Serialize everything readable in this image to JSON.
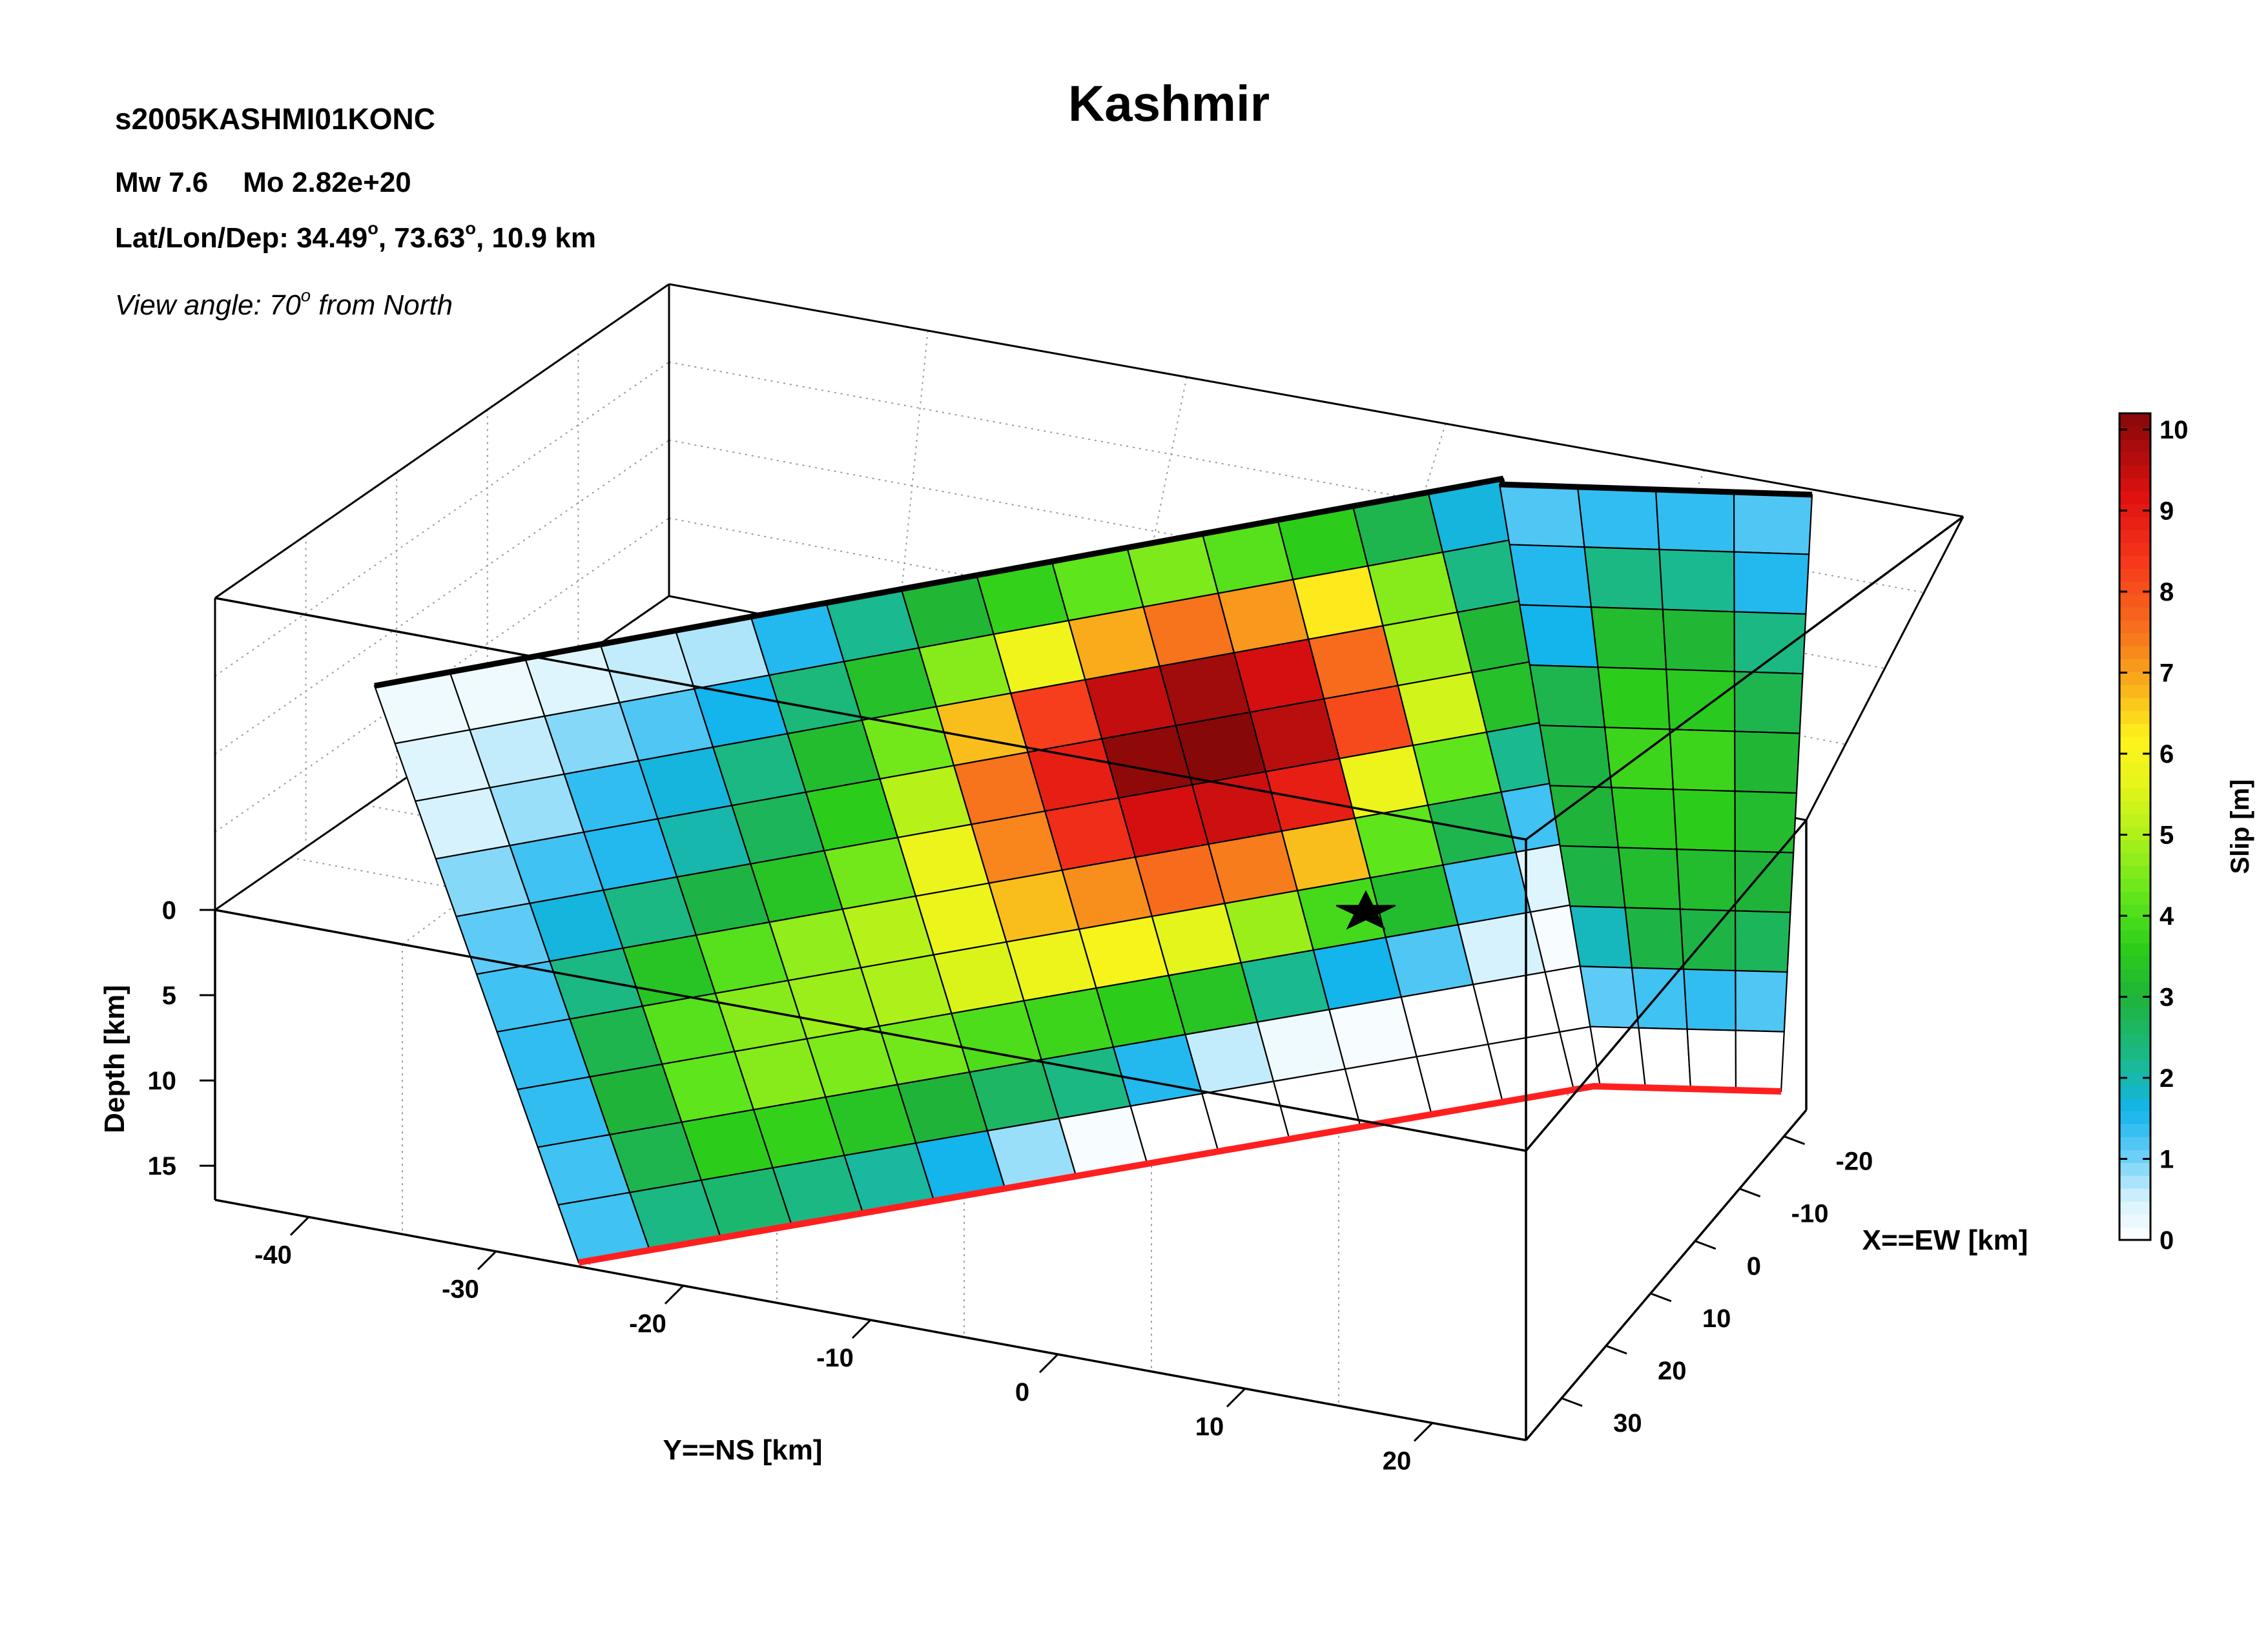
{
  "header": {
    "title": "Kashmir",
    "event_id": "s2005KASHMI01KONC",
    "mw_label": "Mw 7.6",
    "mo_label": "Mo 2.82e+20",
    "location_prefix": "Lat/Lon/Dep: 34.49",
    "location_lon": ", 73.63",
    "location_dep": ", 10.9 km",
    "degree_mark": "o",
    "view_prefix": "View angle:  70",
    "view_suffix": " from North"
  },
  "chart_data": {
    "type": "heatmap",
    "title": "Kashmir",
    "xlabel": "Y==NS [km]",
    "ylabel": "X==EW [km]",
    "zlabel": "Depth [km]",
    "colorbar_label": "Slip [m]",
    "ns_ticks": [
      -40,
      -30,
      -20,
      -10,
      0,
      10,
      20
    ],
    "ew_ticks": [
      -20,
      -10,
      0,
      10,
      20,
      30
    ],
    "depth_ticks": [
      0,
      5,
      10,
      15
    ],
    "colorbar_ticks": [
      0,
      1,
      2,
      3,
      4,
      5,
      6,
      7,
      8,
      9,
      10
    ],
    "slip_range": [
      0,
      10.2
    ],
    "grid": true,
    "colorbar_position": "right",
    "colors": {
      "surface_trace": "#000000",
      "bottom_edge": "#ff1f1f",
      "hypocenter": "#000000",
      "box": "#000000"
    },
    "segments": [
      {
        "rows": 10,
        "cols": 15,
        "slip_m": [
          [
            0.2,
            0.2,
            0.4,
            0.6,
            0.7,
            1.5,
            2.2,
            3.1,
            3.7,
            4.2,
            4.5,
            4.1,
            3.6,
            2.8,
            1.7
          ],
          [
            0.4,
            0.6,
            0.9,
            1.2,
            1.6,
            2.4,
            3.3,
            4.6,
            5.9,
            6.9,
            7.5,
            7.1,
            6.3,
            4.6,
            2.3
          ],
          [
            0.5,
            0.8,
            1.4,
            1.7,
            2.3,
            3.2,
            4.4,
            6.7,
            8.3,
            9.5,
            9.9,
            9.3,
            7.6,
            4.9,
            3.1
          ],
          [
            0.9,
            1.3,
            1.5,
            2.0,
            2.7,
            3.6,
            5.1,
            7.5,
            8.9,
            10.1,
            10.2,
            9.6,
            8.1,
            5.4,
            3.3
          ],
          [
            1.1,
            1.7,
            2.3,
            2.9,
            3.4,
            4.4,
            5.8,
            7.3,
            8.6,
            9.3,
            9.4,
            8.9,
            5.8,
            4.2,
            2.2
          ],
          [
            1.3,
            2.3,
            3.4,
            4.1,
            4.7,
            5.1,
            5.8,
            6.7,
            7.2,
            7.6,
            7.4,
            6.7,
            4.2,
            2.8,
            1.3
          ],
          [
            1.4,
            2.8,
            4.1,
            4.6,
            4.8,
            5.0,
            5.5,
            5.8,
            6.0,
            5.6,
            4.8,
            3.9,
            3.2,
            1.3,
            0.4
          ],
          [
            1.4,
            3.0,
            4.2,
            4.6,
            4.5,
            4.4,
            4.0,
            3.8,
            3.6,
            3.4,
            2.2,
            1.6,
            1.2,
            0.5,
            0.1
          ],
          [
            1.3,
            2.8,
            3.6,
            3.7,
            3.4,
            3.0,
            2.6,
            2.3,
            1.5,
            0.6,
            0.2,
            0.1,
            0.0,
            0.0,
            0.0
          ],
          [
            1.3,
            2.3,
            2.5,
            2.3,
            2.1,
            1.6,
            0.8,
            0.1,
            0.0,
            0.0,
            0.0,
            0.0,
            0.0,
            0.0,
            0.0
          ]
        ]
      },
      {
        "rows": 10,
        "cols": 4,
        "slip_m": [
          [
            1.2,
            1.4,
            1.4,
            1.2
          ],
          [
            1.5,
            2.3,
            2.2,
            1.5
          ],
          [
            1.6,
            3.2,
            3.1,
            2.3
          ],
          [
            2.8,
            3.6,
            3.5,
            2.8
          ],
          [
            2.9,
            3.8,
            3.8,
            3.1
          ],
          [
            3.0,
            3.5,
            3.6,
            3.2
          ],
          [
            2.9,
            3.2,
            3.2,
            3.0
          ],
          [
            1.9,
            2.9,
            2.9,
            2.7
          ],
          [
            1.1,
            1.3,
            1.4,
            1.2
          ],
          [
            0.0,
            0.0,
            0.0,
            0.0
          ]
        ]
      }
    ],
    "colormap": [
      {
        "slip": 0.0,
        "color": "#ffffff"
      },
      {
        "slip": 0.5,
        "color": "#d6f2fc"
      },
      {
        "slip": 1.1,
        "color": "#5ecbf6"
      },
      {
        "slip": 1.6,
        "color": "#14b4ec"
      },
      {
        "slip": 2.2,
        "color": "#1ab98f"
      },
      {
        "slip": 3.0,
        "color": "#1fb33a"
      },
      {
        "slip": 3.6,
        "color": "#2ccd1a"
      },
      {
        "slip": 4.2,
        "color": "#5ee51c"
      },
      {
        "slip": 4.9,
        "color": "#a5f01a"
      },
      {
        "slip": 5.6,
        "color": "#e3f51a"
      },
      {
        "slip": 6.2,
        "color": "#fff31c"
      },
      {
        "slip": 6.8,
        "color": "#f9b41c"
      },
      {
        "slip": 7.5,
        "color": "#f7731c"
      },
      {
        "slip": 8.4,
        "color": "#f6361c"
      },
      {
        "slip": 9.2,
        "color": "#de1010"
      },
      {
        "slip": 9.7,
        "color": "#b00d0d"
      },
      {
        "slip": 10.2,
        "color": "#870808"
      }
    ]
  }
}
